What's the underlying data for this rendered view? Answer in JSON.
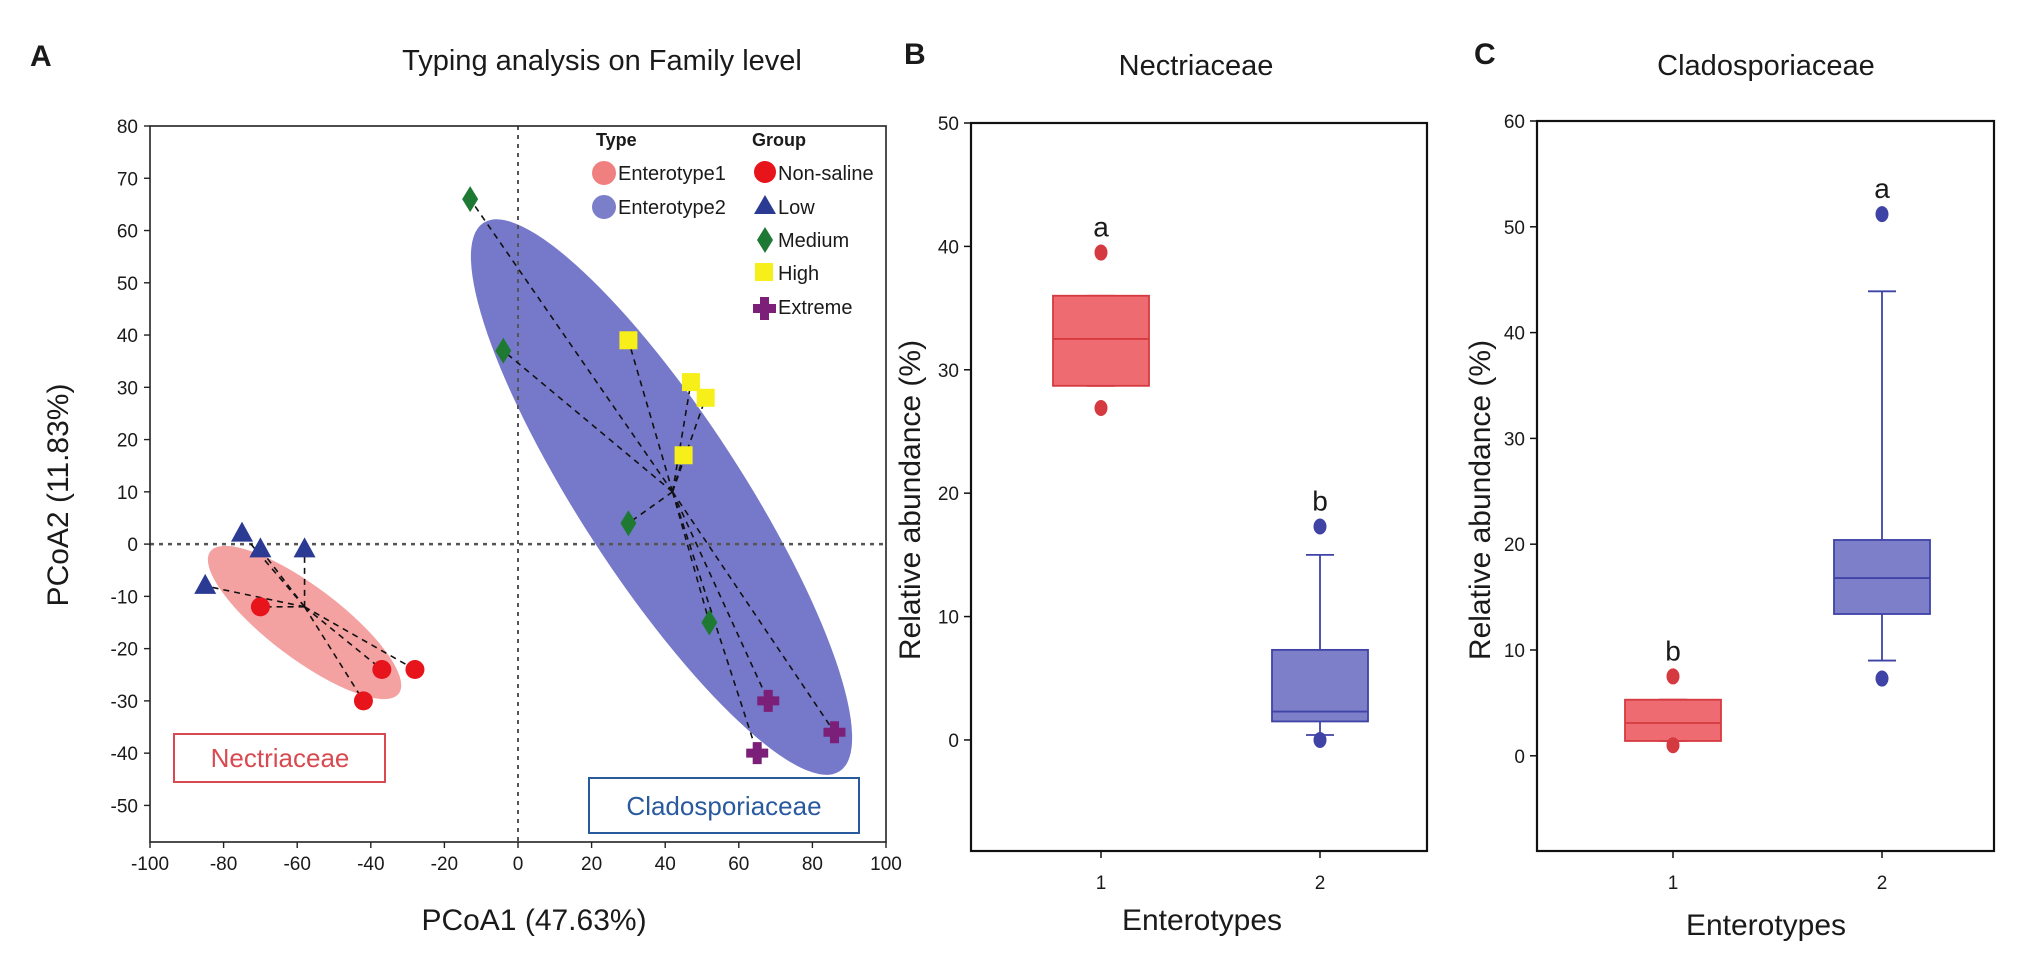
{
  "figure": {
    "panels": [
      "A",
      "B",
      "C"
    ]
  },
  "colors": {
    "enterotype1": "#f08080",
    "enterotype2": "#7b7ec9",
    "nonsaline": "#e8141c",
    "low": "#2b3a93",
    "medium": "#1e7a32",
    "high": "#f7ef1a",
    "extreme": "#7b1f78",
    "ellipse1": "#f29090",
    "ellipse2": "#6f72c7",
    "box1": "#ee6b71",
    "box2": "#7d80c9",
    "box1_line": "#d53a40",
    "box2_line": "#3f43a6",
    "label_red": "#d94a50",
    "label_blue": "#2a5a9e"
  },
  "chart_data": [
    {
      "id": "A",
      "type": "scatter",
      "title": "Typing analysis on Family level",
      "xlabel": "PCoA1 (47.63%)",
      "ylabel": "PCoA2 (11.83%)",
      "xlim": [
        -100,
        100
      ],
      "ylim": [
        -57,
        80
      ],
      "xticks": [
        -100,
        -80,
        -60,
        -40,
        -20,
        0,
        20,
        40,
        60,
        80,
        100
      ],
      "yticks": [
        -50,
        -40,
        -30,
        -20,
        -10,
        0,
        10,
        20,
        30,
        40,
        50,
        60,
        70,
        80
      ],
      "legend": {
        "type_header": "Type",
        "group_header": "Group",
        "types": [
          "Enterotype1",
          "Enterotype2"
        ],
        "groups": [
          "Non-saline",
          "Low",
          "Medium",
          "High",
          "Extreme"
        ]
      },
      "centroids": [
        {
          "type": "Enterotype1",
          "x": -58,
          "y": -12
        },
        {
          "type": "Enterotype2",
          "x": 42,
          "y": 10
        }
      ],
      "points": [
        {
          "group": "Non-saline",
          "type": "Enterotype1",
          "x": -70,
          "y": -12
        },
        {
          "group": "Non-saline",
          "type": "Enterotype1",
          "x": -37,
          "y": -24
        },
        {
          "group": "Non-saline",
          "type": "Enterotype1",
          "x": -28,
          "y": -24
        },
        {
          "group": "Non-saline",
          "type": "Enterotype1",
          "x": -42,
          "y": -30
        },
        {
          "group": "Low",
          "type": "Enterotype1",
          "x": -75,
          "y": 2
        },
        {
          "group": "Low",
          "type": "Enterotype1",
          "x": -70,
          "y": -1
        },
        {
          "group": "Low",
          "type": "Enterotype1",
          "x": -58,
          "y": -1
        },
        {
          "group": "Low",
          "type": "Enterotype1",
          "x": -85,
          "y": -8
        },
        {
          "group": "Medium",
          "type": "Enterotype2",
          "x": -13,
          "y": 66
        },
        {
          "group": "Medium",
          "type": "Enterotype2",
          "x": -4,
          "y": 37
        },
        {
          "group": "Medium",
          "type": "Enterotype2",
          "x": 30,
          "y": 4
        },
        {
          "group": "Medium",
          "type": "Enterotype2",
          "x": 52,
          "y": -15
        },
        {
          "group": "High",
          "type": "Enterotype2",
          "x": 30,
          "y": 39
        },
        {
          "group": "High",
          "type": "Enterotype2",
          "x": 47,
          "y": 31
        },
        {
          "group": "High",
          "type": "Enterotype2",
          "x": 51,
          "y": 28
        },
        {
          "group": "High",
          "type": "Enterotype2",
          "x": 45,
          "y": 17
        },
        {
          "group": "Extreme",
          "type": "Enterotype2",
          "x": 68,
          "y": -30
        },
        {
          "group": "Extreme",
          "type": "Enterotype2",
          "x": 86,
          "y": -36
        },
        {
          "group": "Extreme",
          "type": "Enterotype2",
          "x": 65,
          "y": -40
        }
      ],
      "annotations": [
        "Nectriaceae",
        "Cladosporiaceae"
      ]
    },
    {
      "id": "B",
      "type": "box",
      "title": "Nectriaceae",
      "xlabel": "Enterotypes",
      "ylabel": "Relative abundance (%)",
      "ylim": [
        -9,
        50
      ],
      "yticks": [
        0,
        10,
        20,
        30,
        40,
        50
      ],
      "categories": [
        "1",
        "2"
      ],
      "boxes": [
        {
          "category": "1",
          "q1": 28.7,
          "median": 32.5,
          "q3": 36.0,
          "whisker_low": 28.7,
          "whisker_high": 36.0,
          "outliers": [
            39.5,
            26.9
          ],
          "letter": "a"
        },
        {
          "category": "2",
          "q1": 1.5,
          "median": 2.3,
          "q3": 7.3,
          "whisker_low": 0.4,
          "whisker_high": 15.0,
          "outliers": [
            17.3,
            0.0
          ],
          "letter": "b"
        }
      ]
    },
    {
      "id": "C",
      "type": "box",
      "title": "Cladosporiaceae",
      "xlabel": "Enterotypes",
      "ylabel": "Relative abundance (%)",
      "ylim": [
        -9,
        60
      ],
      "yticks": [
        0,
        10,
        20,
        30,
        40,
        50,
        60
      ],
      "categories": [
        "1",
        "2"
      ],
      "boxes": [
        {
          "category": "1",
          "q1": 1.4,
          "median": 3.1,
          "q3": 5.3,
          "whisker_low": 1.4,
          "whisker_high": 5.3,
          "outliers": [
            7.5,
            1.0
          ],
          "letter": "b"
        },
        {
          "category": "2",
          "q1": 13.4,
          "median": 16.8,
          "q3": 20.4,
          "whisker_low": 9.0,
          "whisker_high": 43.9,
          "outliers": [
            51.2,
            7.3
          ],
          "letter": "a"
        }
      ]
    }
  ]
}
